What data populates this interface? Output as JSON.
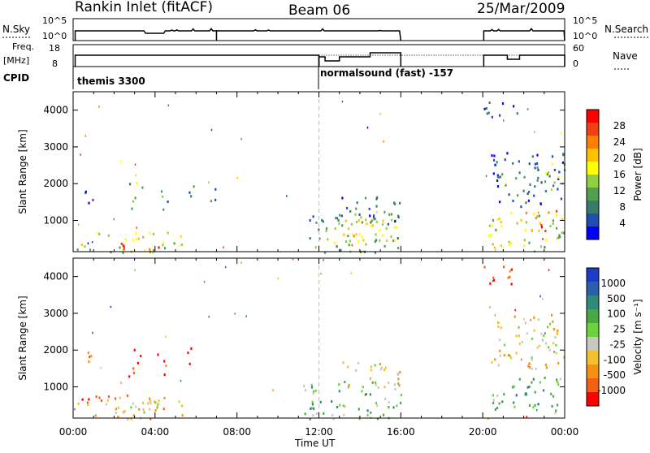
{
  "header": {
    "station": "Rankin Inlet (fitACF)",
    "beam": "Beam 06",
    "date": "25/Mar/2009"
  },
  "top_panels": {
    "nsky_label": "N.Sky",
    "nsky_ticks": [
      "10^5",
      "10^0"
    ],
    "nsearch_label": "N.Search",
    "nsearch_ticks": [
      "10^5",
      "10^0"
    ],
    "freq_label": "Freq.",
    "freq_unit": "[MHz]",
    "freq_ticks": [
      "18",
      "8"
    ],
    "nave_label": "Nave",
    "nave_ticks": [
      "60",
      "0"
    ],
    "cpid_label": "CPID",
    "cpid_segments": [
      {
        "label": "themis 3300"
      },
      {
        "label": "normalsound (fast) -157"
      }
    ]
  },
  "chart_data": [
    {
      "type": "heatmap",
      "name": "power",
      "ylabel": "Slant Range [km]",
      "yticks": [
        1000,
        2000,
        3000,
        4000
      ],
      "ylim": [
        150,
        4500
      ],
      "xlim": [
        0,
        24
      ],
      "colorbar_label": "Power [dB]",
      "colorbar_ticks": [
        "28",
        "24",
        "20",
        "16",
        "12",
        "8",
        "4"
      ],
      "colorbar_colors": [
        "#ff0000",
        "#f04010",
        "#ff8000",
        "#ffc000",
        "#ffff00",
        "#90d040",
        "#50a050",
        "#3a7a6a",
        "#1e4fb0",
        "#0000ff"
      ],
      "blobs": [
        {
          "t0": 0.1,
          "t1": 1.0,
          "r0": 150,
          "r1": 500,
          "level": 0.55
        },
        {
          "t0": 1.0,
          "t1": 5.3,
          "r0": 150,
          "r1": 700,
          "level": 0.6
        },
        {
          "t0": 2.2,
          "t1": 4.5,
          "r0": 150,
          "r1": 500,
          "level": 0.95
        },
        {
          "t0": 0.4,
          "t1": 1.2,
          "r0": 1500,
          "r1": 1900,
          "level": 0.25
        },
        {
          "t0": 2.7,
          "t1": 3.4,
          "r0": 1300,
          "r1": 2100,
          "level": 0.55
        },
        {
          "t0": 4.1,
          "t1": 4.6,
          "r0": 1300,
          "r1": 2100,
          "level": 0.45
        },
        {
          "t0": 5.5,
          "t1": 5.9,
          "r0": 1500,
          "r1": 2100,
          "level": 0.3
        },
        {
          "t0": 6.5,
          "t1": 7.0,
          "r0": 1300,
          "r1": 1900,
          "level": 0.25
        },
        {
          "t0": 11.5,
          "t1": 16.0,
          "r0": 150,
          "r1": 1200,
          "level": 0.45
        },
        {
          "t0": 12.5,
          "t1": 15.8,
          "r0": 400,
          "r1": 1100,
          "level": 0.7
        },
        {
          "t0": 13.0,
          "t1": 16.0,
          "r0": 1000,
          "r1": 1700,
          "level": 0.3
        },
        {
          "t0": 20.2,
          "t1": 24.0,
          "r0": 300,
          "r1": 1300,
          "level": 0.6
        },
        {
          "t0": 22.0,
          "t1": 24.0,
          "r0": 700,
          "r1": 1300,
          "level": 0.85
        },
        {
          "t0": 20.4,
          "t1": 24.0,
          "r0": 1400,
          "r1": 2900,
          "level": 0.25
        },
        {
          "t0": 22.8,
          "t1": 24.0,
          "r0": 2000,
          "r1": 2700,
          "level": 0.55
        },
        {
          "t0": 20.0,
          "t1": 21.8,
          "r0": 3800,
          "r1": 4300,
          "level": 0.2
        }
      ]
    },
    {
      "type": "heatmap",
      "name": "velocity",
      "ylabel": "Slant Range [km]",
      "yticks": [
        1000,
        2000,
        3000,
        4000
      ],
      "ylim": [
        150,
        4500
      ],
      "xlim": [
        0,
        24
      ],
      "colorbar_label": "Velocity [m s⁻¹]",
      "colorbar_ticks": [
        "1000",
        "500",
        "100",
        "25",
        "-25",
        "-100",
        "-500",
        "-1000"
      ],
      "colorbar_colors": [
        "#1c3cc8",
        "#2a5fb0",
        "#2f8a7a",
        "#47a844",
        "#6ad43c",
        "#c8c8c0",
        "#f5c030",
        "#f59010",
        "#f56010",
        "#ff0000"
      ],
      "blobs": [
        {
          "t0": 0.1,
          "t1": 5.3,
          "r0": 150,
          "r1": 800,
          "level": 0.35
        },
        {
          "t0": 2.2,
          "t1": 4.5,
          "r0": 150,
          "r1": 600,
          "level": 0.55
        },
        {
          "t0": 0.4,
          "t1": 1.2,
          "r0": 1600,
          "r1": 2000,
          "level": 0.2
        },
        {
          "t0": 2.7,
          "t1": 3.4,
          "r0": 1300,
          "r1": 2100,
          "level": 0.1
        },
        {
          "t0": 4.1,
          "t1": 4.6,
          "r0": 1300,
          "r1": 2100,
          "level": 0.1
        },
        {
          "t0": 5.5,
          "t1": 5.9,
          "r0": 1500,
          "r1": 2100,
          "level": 0.15
        },
        {
          "t0": 11.0,
          "t1": 16.0,
          "r0": 150,
          "r1": 1200,
          "level": 0.72
        },
        {
          "t0": 13.0,
          "t1": 16.0,
          "r0": 1000,
          "r1": 1700,
          "level": 0.5
        },
        {
          "t0": 20.4,
          "t1": 24.0,
          "r0": 300,
          "r1": 1300,
          "level": 0.78
        },
        {
          "t0": 20.4,
          "t1": 24.0,
          "r0": 1500,
          "r1": 3000,
          "level": 0.5
        },
        {
          "t0": 20.0,
          "t1": 21.8,
          "r0": 3800,
          "r1": 4300,
          "level": 0.2
        }
      ]
    }
  ],
  "x_axis": {
    "ticks": [
      "00:00",
      "04:00",
      "08:00",
      "12:00",
      "16:00",
      "20:00",
      "00:00"
    ],
    "label": "Time UT"
  }
}
